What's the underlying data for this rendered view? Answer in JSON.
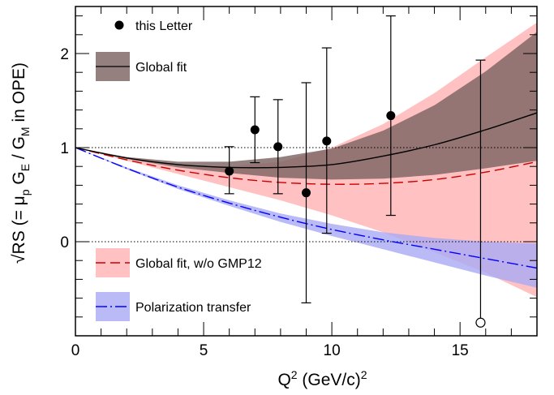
{
  "chart_data": {
    "type": "scatter",
    "xlabel": "Q² (GeV/c)²",
    "ylabel": "√RS (= μp GE / GM in OPE)",
    "xlabel_parts": {
      "base": "Q",
      "sup": "2",
      "rest": " (GeV/c)",
      "sup2": "2"
    },
    "ylabel_parts": {
      "root": "√",
      "rs": "RS",
      "open": " (= μ",
      "sub_p": "p",
      "ge": " G",
      "sub_e": "E",
      "slash": " / G",
      "sub_m": "M",
      "close": " in OPE)"
    },
    "xlim": [
      0,
      18
    ],
    "ylim": [
      -1.0,
      2.5
    ],
    "x_ticks": [
      0,
      5,
      10,
      15
    ],
    "y_ticks": [
      0,
      1,
      2
    ],
    "reference_lines_y": [
      0,
      1
    ],
    "legend": [
      {
        "label": "this Letter"
      },
      {
        "label": "Global fit"
      },
      {
        "label": "Global fit, w/o GMP12"
      },
      {
        "label": "Polarization transfer"
      }
    ],
    "data_points": [
      {
        "x": 6.0,
        "y": 0.75,
        "y_lo": 0.51,
        "y_hi": 1.01
      },
      {
        "x": 7.0,
        "y": 1.19,
        "y_lo": 0.84,
        "y_hi": 1.54
      },
      {
        "x": 7.9,
        "y": 1.01,
        "y_lo": 0.51,
        "y_hi": 1.51
      },
      {
        "x": 9.0,
        "y": 0.52,
        "y_lo": -0.65,
        "y_hi": 1.69
      },
      {
        "x": 9.8,
        "y": 1.07,
        "y_lo": 0.09,
        "y_hi": 2.06
      },
      {
        "x": 12.3,
        "y": 1.34,
        "y_lo": 0.28,
        "y_hi": 2.4
      },
      {
        "x": 15.8,
        "y": -0.86,
        "y_lo": -0.86,
        "y_hi": 1.93,
        "open": true
      }
    ],
    "global_fit": {
      "color": "#000000",
      "band_color": "#7a6060",
      "x": [
        0,
        2,
        4,
        6,
        8,
        10,
        12,
        14,
        16,
        18
      ],
      "y": [
        1.0,
        0.89,
        0.82,
        0.79,
        0.79,
        0.82,
        0.91,
        1.03,
        1.19,
        1.37
      ],
      "lower": [
        1.0,
        0.88,
        0.79,
        0.73,
        0.68,
        0.66,
        0.67,
        0.71,
        0.78,
        0.86
      ],
      "upper": [
        1.0,
        0.9,
        0.85,
        0.85,
        0.9,
        0.99,
        1.18,
        1.45,
        1.81,
        2.23
      ]
    },
    "global_fit_no_gmp12": {
      "color": "#cc0000",
      "band_color": "#ffb6b6",
      "x": [
        0,
        2,
        4,
        6,
        8,
        10,
        12,
        14,
        16,
        18
      ],
      "y": [
        1.0,
        0.87,
        0.76,
        0.68,
        0.63,
        0.61,
        0.62,
        0.66,
        0.74,
        0.85
      ],
      "lower": [
        1.0,
        0.86,
        0.72,
        0.58,
        0.44,
        0.28,
        0.1,
        -0.11,
        -0.33,
        -0.59
      ],
      "upper": [
        1.0,
        0.89,
        0.81,
        0.8,
        0.85,
        1.0,
        1.25,
        1.58,
        1.96,
        2.33
      ]
    },
    "polarization_transfer": {
      "color": "#0000ff",
      "band_color": "#a9a9f5",
      "x": [
        0,
        2,
        4,
        6,
        8,
        10,
        12,
        14,
        16,
        18
      ],
      "y": [
        1.0,
        0.78,
        0.58,
        0.41,
        0.26,
        0.13,
        0.02,
        -0.08,
        -0.18,
        -0.28
      ],
      "lower": [
        1.0,
        0.77,
        0.56,
        0.38,
        0.21,
        0.06,
        -0.08,
        -0.22,
        -0.36,
        -0.49
      ],
      "upper": [
        1.0,
        0.79,
        0.6,
        0.44,
        0.3,
        0.19,
        0.1,
        0.04,
        0.0,
        -0.02
      ]
    }
  }
}
